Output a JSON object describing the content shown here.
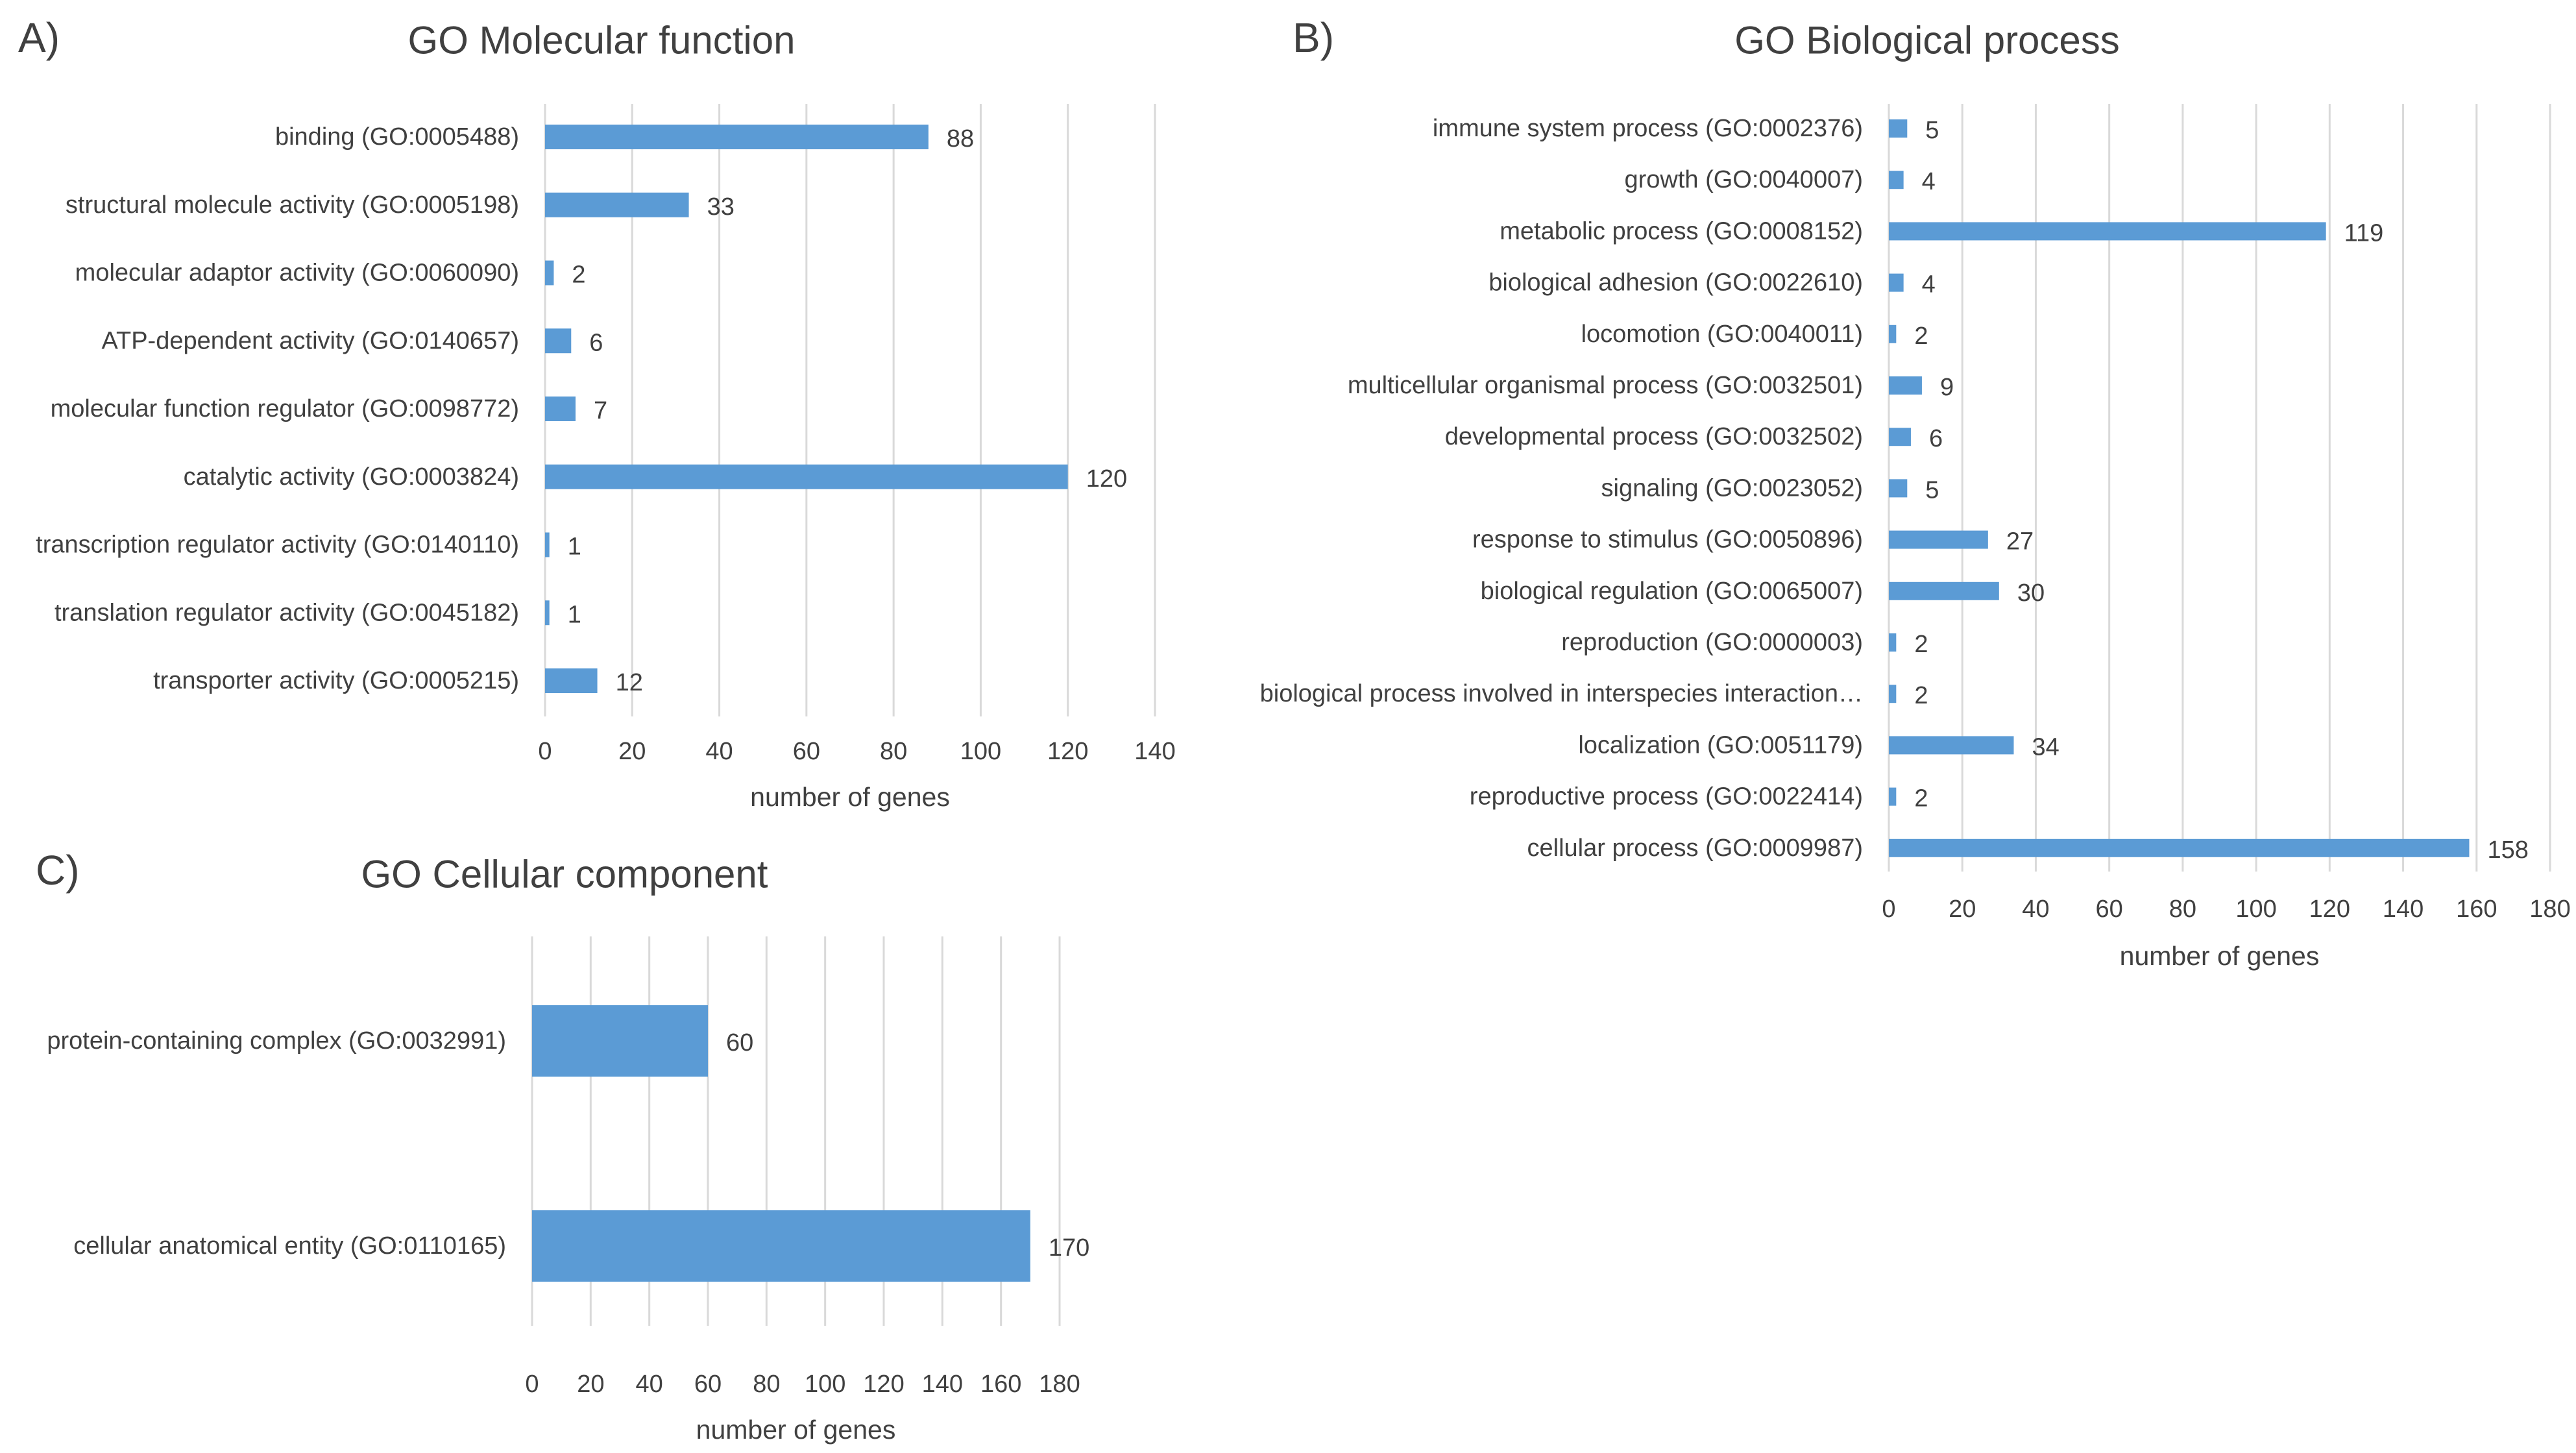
{
  "bar_color": "#5b9bd5",
  "grid_color": "#d9d9d9",
  "text_color": "#404040",
  "chart_data": [
    {
      "panel_label": "A)",
      "type": "bar",
      "orientation": "horizontal",
      "title": "GO Molecular function",
      "xlabel": "number of genes",
      "ylabel": "",
      "xlim": [
        0,
        140
      ],
      "ticks": [
        0,
        20,
        40,
        60,
        80,
        100,
        120,
        140
      ],
      "grid": true,
      "categories": [
        "binding (GO:0005488)",
        "structural molecule activity (GO:0005198)",
        "molecular adaptor activity (GO:0060090)",
        "ATP-dependent activity (GO:0140657)",
        "molecular function regulator (GO:0098772)",
        "catalytic activity (GO:0003824)",
        "transcription regulator activity (GO:0140110)",
        "translation regulator activity (GO:0045182)",
        "transporter activity (GO:0005215)"
      ],
      "values": [
        88,
        33,
        2,
        6,
        7,
        120,
        1,
        1,
        12
      ]
    },
    {
      "panel_label": "B)",
      "type": "bar",
      "orientation": "horizontal",
      "title": "GO Biological process",
      "xlabel": "number of genes",
      "ylabel": "",
      "xlim": [
        0,
        180
      ],
      "ticks": [
        0,
        20,
        40,
        60,
        80,
        100,
        120,
        140,
        160,
        180
      ],
      "grid": true,
      "categories": [
        "immune system process (GO:0002376)",
        "growth (GO:0040007)",
        "metabolic process (GO:0008152)",
        "biological adhesion (GO:0022610)",
        "locomotion (GO:0040011)",
        "multicellular organismal process (GO:0032501)",
        "developmental process (GO:0032502)",
        "signaling (GO:0023052)",
        "response to stimulus (GO:0050896)",
        "biological regulation (GO:0065007)",
        "reproduction (GO:0000003)",
        "biological process involved in interspecies interaction…",
        "localization (GO:0051179)",
        "reproductive process (GO:0022414)",
        "cellular process (GO:0009987)"
      ],
      "values": [
        5,
        4,
        119,
        4,
        2,
        9,
        6,
        5,
        27,
        30,
        2,
        2,
        34,
        2,
        158
      ]
    },
    {
      "panel_label": "C)",
      "type": "bar",
      "orientation": "horizontal",
      "title": "GO Cellular component",
      "xlabel": "number of genes",
      "ylabel": "",
      "xlim": [
        0,
        180
      ],
      "ticks": [
        0,
        20,
        40,
        60,
        80,
        100,
        120,
        140,
        160,
        180
      ],
      "grid": true,
      "categories": [
        "protein-containing complex (GO:0032991)",
        "cellular anatomical entity (GO:0110165)"
      ],
      "values": [
        60,
        170
      ]
    }
  ]
}
